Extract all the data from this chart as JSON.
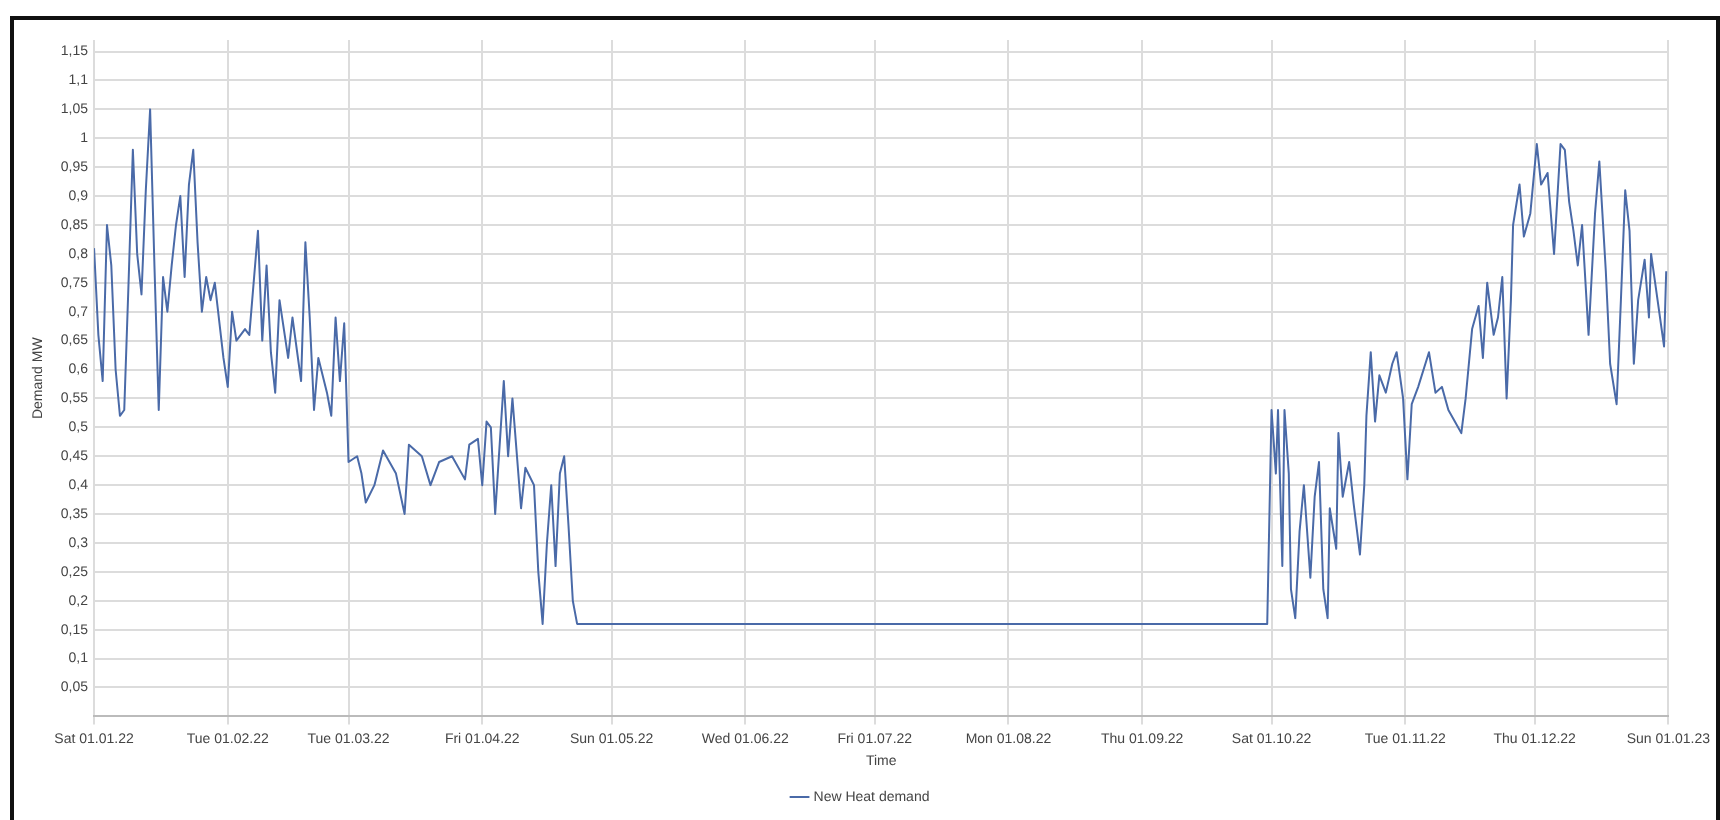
{
  "chart_data": {
    "type": "line",
    "xlabel": "Time",
    "ylabel": "Demand MW",
    "legend": "bottom",
    "grid": true,
    "marker": "none",
    "line_style": "solid",
    "xlim": [
      "2022-01-01",
      "2023-01-01"
    ],
    "xticks": [
      {
        "value": "2022-01-01",
        "label": "Sat 01.01.22"
      },
      {
        "value": "2022-02-01",
        "label": "Tue 01.02.22"
      },
      {
        "value": "2022-03-01",
        "label": "Tue 01.03.22"
      },
      {
        "value": "2022-04-01",
        "label": "Fri 01.04.22"
      },
      {
        "value": "2022-05-01",
        "label": "Sun 01.05.22"
      },
      {
        "value": "2022-06-01",
        "label": "Wed 01.06.22"
      },
      {
        "value": "2022-07-01",
        "label": "Fri 01.07.22"
      },
      {
        "value": "2022-08-01",
        "label": "Mon 01.08.22"
      },
      {
        "value": "2022-09-01",
        "label": "Thu 01.09.22"
      },
      {
        "value": "2022-10-01",
        "label": "Sat 01.10.22"
      },
      {
        "value": "2022-11-01",
        "label": "Tue 01.11.22"
      },
      {
        "value": "2022-12-01",
        "label": "Thu 01.12.22"
      },
      {
        "value": "2023-01-01",
        "label": "Sun 01.01.23"
      }
    ],
    "ylim": [
      0,
      1.17
    ],
    "yticks": [
      {
        "value": 0.05,
        "label": "0,05"
      },
      {
        "value": 0.1,
        "label": "0,1"
      },
      {
        "value": 0.15,
        "label": "0,15"
      },
      {
        "value": 0.2,
        "label": "0,2"
      },
      {
        "value": 0.25,
        "label": "0,25"
      },
      {
        "value": 0.3,
        "label": "0,3"
      },
      {
        "value": 0.35,
        "label": "0,35"
      },
      {
        "value": 0.4,
        "label": "0,4"
      },
      {
        "value": 0.45,
        "label": "0,45"
      },
      {
        "value": 0.5,
        "label": "0,5"
      },
      {
        "value": 0.55,
        "label": "0,55"
      },
      {
        "value": 0.6,
        "label": "0,6"
      },
      {
        "value": 0.65,
        "label": "0,65"
      },
      {
        "value": 0.7,
        "label": "0,7"
      },
      {
        "value": 0.75,
        "label": "0,75"
      },
      {
        "value": 0.8,
        "label": "0,8"
      },
      {
        "value": 0.85,
        "label": "0,85"
      },
      {
        "value": 0.9,
        "label": "0,9"
      },
      {
        "value": 0.95,
        "label": "0,95"
      },
      {
        "value": 1,
        "label": "1"
      },
      {
        "value": 1.05,
        "label": "1,05"
      },
      {
        "value": 1.1,
        "label": "1,1"
      },
      {
        "value": 1.15,
        "label": "1,15"
      }
    ],
    "x": [
      "2022-01-01",
      "2022-01-02",
      "2022-01-03",
      "2022-01-04",
      "2022-01-05",
      "2022-01-06",
      "2022-01-07",
      "2022-01-08",
      "2022-01-09",
      "2022-01-10",
      "2022-01-11",
      "2022-01-12",
      "2022-01-13",
      "2022-01-14",
      "2022-01-15",
      "2022-01-16",
      "2022-01-17",
      "2022-01-18",
      "2022-01-19",
      "2022-01-20",
      "2022-01-21",
      "2022-01-22",
      "2022-01-23",
      "2022-01-24",
      "2022-01-25",
      "2022-01-26",
      "2022-01-27",
      "2022-01-28",
      "2022-01-29",
      "2022-01-31",
      "2022-02-01",
      "2022-02-02",
      "2022-02-03",
      "2022-02-05",
      "2022-02-06",
      "2022-02-08",
      "2022-02-09",
      "2022-02-10",
      "2022-02-11",
      "2022-02-12",
      "2022-02-13",
      "2022-02-15",
      "2022-02-16",
      "2022-02-18",
      "2022-02-19",
      "2022-02-20",
      "2022-02-21",
      "2022-02-22",
      "2022-02-24",
      "2022-02-25",
      "2022-02-26",
      "2022-02-27",
      "2022-02-28",
      "2022-03-01",
      "2022-03-03",
      "2022-03-04",
      "2022-03-05",
      "2022-03-07",
      "2022-03-09",
      "2022-03-12",
      "2022-03-14",
      "2022-03-15",
      "2022-03-18",
      "2022-03-20",
      "2022-03-22",
      "2022-03-25",
      "2022-03-28",
      "2022-03-29",
      "2022-03-31",
      "2022-04-01",
      "2022-04-02",
      "2022-04-03",
      "2022-04-04",
      "2022-04-06",
      "2022-04-07",
      "2022-04-08",
      "2022-04-10",
      "2022-04-11",
      "2022-04-13",
      "2022-04-14",
      "2022-04-15",
      "2022-04-16",
      "2022-04-17",
      "2022-04-18",
      "2022-04-19",
      "2022-04-20",
      "2022-04-21",
      "2022-04-22",
      "2022-04-23",
      "2022-09-30",
      "2022-10-01",
      "2022-10-02",
      "2022-10-02T12:00",
      "2022-10-03T12:00",
      "2022-10-04",
      "2022-10-05",
      "2022-10-05T12:00",
      "2022-10-06T12:00",
      "2022-10-07T12:00",
      "2022-10-08T12:00",
      "2022-10-10",
      "2022-10-11",
      "2022-10-12",
      "2022-10-13",
      "2022-10-14",
      "2022-10-14T12:00",
      "2022-10-16",
      "2022-10-16T12:00",
      "2022-10-17T12:00",
      "2022-10-19",
      "2022-10-20",
      "2022-10-21T12:00",
      "2022-10-22T12:00",
      "2022-10-23",
      "2022-10-24",
      "2022-10-25",
      "2022-10-26",
      "2022-10-27T12:00",
      "2022-10-29",
      "2022-10-30",
      "2022-10-31T12:00",
      "2022-11-01T12:00",
      "2022-11-02T12:00",
      "2022-11-04",
      "2022-11-06T12:00",
      "2022-11-08",
      "2022-11-09T12:00",
      "2022-11-11",
      "2022-11-12T12:00",
      "2022-11-14",
      "2022-11-15",
      "2022-11-16T12:00",
      "2022-11-18",
      "2022-11-19",
      "2022-11-20",
      "2022-11-21T12:00",
      "2022-11-22T12:00",
      "2022-11-23T12:00",
      "2022-11-24T12:00",
      "2022-11-25T12:00",
      "2022-11-26",
      "2022-11-27T12:00",
      "2022-11-28T12:00",
      "2022-11-30",
      "2022-12-01T12:00",
      "2022-12-02T12:00",
      "2022-12-04",
      "2022-12-05T12:00",
      "2022-12-07",
      "2022-12-08",
      "2022-12-09",
      "2022-12-10",
      "2022-12-11",
      "2022-12-12",
      "2022-12-13T12:00",
      "2022-12-15",
      "2022-12-16",
      "2022-12-17T12:00",
      "2022-12-18T12:00",
      "2022-12-20",
      "2022-12-21",
      "2022-12-22",
      "2022-12-23",
      "2022-12-24",
      "2022-12-25",
      "2022-12-26T12:00",
      "2022-12-27T12:00",
      "2022-12-28",
      "2022-12-29T12:00",
      "2022-12-31",
      "2022-12-31T12:00"
    ],
    "series": [
      {
        "name": "New Heat demand",
        "color": "#4a6aa8",
        "values": [
          0.81,
          0.66,
          0.58,
          0.85,
          0.78,
          0.6,
          0.52,
          0.53,
          0.75,
          0.98,
          0.8,
          0.73,
          0.91,
          1.05,
          0.78,
          0.53,
          0.76,
          0.7,
          0.78,
          0.85,
          0.9,
          0.76,
          0.92,
          0.98,
          0.82,
          0.7,
          0.76,
          0.72,
          0.75,
          0.62,
          0.57,
          0.7,
          0.65,
          0.67,
          0.66,
          0.84,
          0.65,
          0.78,
          0.63,
          0.56,
          0.72,
          0.62,
          0.69,
          0.58,
          0.82,
          0.69,
          0.53,
          0.62,
          0.56,
          0.52,
          0.69,
          0.58,
          0.68,
          0.44,
          0.45,
          0.42,
          0.37,
          0.4,
          0.46,
          0.42,
          0.35,
          0.47,
          0.45,
          0.4,
          0.44,
          0.45,
          0.41,
          0.47,
          0.48,
          0.4,
          0.51,
          0.5,
          0.35,
          0.58,
          0.45,
          0.55,
          0.36,
          0.43,
          0.4,
          0.25,
          0.16,
          0.3,
          0.4,
          0.26,
          0.42,
          0.45,
          0.33,
          0.2,
          0.16,
          0.16,
          0.53,
          0.42,
          0.53,
          0.26,
          0.53,
          0.42,
          0.22,
          0.17,
          0.32,
          0.4,
          0.24,
          0.38,
          0.44,
          0.22,
          0.17,
          0.36,
          0.29,
          0.49,
          0.38,
          0.44,
          0.37,
          0.28,
          0.4,
          0.52,
          0.63,
          0.51,
          0.59,
          0.56,
          0.61,
          0.63,
          0.55,
          0.41,
          0.54,
          0.57,
          0.63,
          0.56,
          0.57,
          0.53,
          0.51,
          0.49,
          0.55,
          0.67,
          0.71,
          0.62,
          0.75,
          0.66,
          0.69,
          0.76,
          0.55,
          0.72,
          0.85,
          0.92,
          0.83,
          0.87,
          0.99,
          0.92,
          0.94,
          0.8,
          0.99,
          0.98,
          0.89,
          0.84,
          0.78,
          0.85,
          0.66,
          0.87,
          0.96,
          0.77,
          0.61,
          0.54,
          0.72,
          0.91,
          0.84,
          0.61,
          0.72,
          0.79,
          0.69,
          0.8,
          0.72,
          0.64,
          0.77
        ]
      }
    ]
  }
}
